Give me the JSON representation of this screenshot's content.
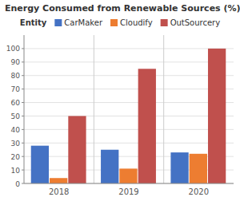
{
  "chart_data": {
    "type": "bar",
    "title": "Energy Consumed from Renewable Sources (%)",
    "categories": [
      "2018",
      "2019",
      "2020"
    ],
    "series": [
      {
        "name": "CarMaker",
        "color": "#4472C4",
        "values": [
          28,
          25,
          23
        ]
      },
      {
        "name": "Cloudify",
        "color": "#ED7D31",
        "values": [
          4,
          11,
          22
        ]
      },
      {
        "name": "OutSourcery",
        "color": "#C0504D",
        "values": [
          50,
          85,
          100
        ]
      }
    ],
    "ylim": [
      0,
      110
    ],
    "yticks": [
      0,
      10,
      20,
      30,
      40,
      50,
      60,
      70,
      80,
      90,
      100
    ],
    "grid": true,
    "legend": "top",
    "legend_title": "Entity"
  }
}
